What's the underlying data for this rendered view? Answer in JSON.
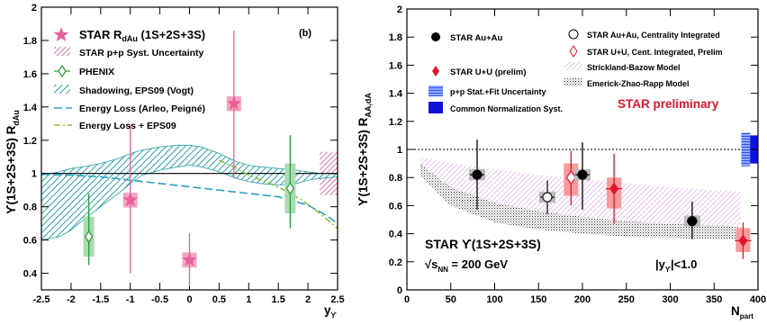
{
  "chart_data": [
    {
      "type": "scatter",
      "panel_label": "(b)",
      "ylabel": "ϒ(1S+2S+3S) R",
      "ylabel_sub": "dAu",
      "xlabel": "y",
      "xlabel_sub": "ϒ",
      "xlim": [
        -2.5,
        2.5
      ],
      "ylim": [
        0.3,
        2.0
      ],
      "x_ticks": [
        "-2.5",
        "-2",
        "-1.5",
        "-1",
        "-0.5",
        "0",
        "0.5",
        "1",
        "1.5",
        "2",
        "2.5"
      ],
      "y_ticks": [
        "0.4",
        "0.6",
        "0.8",
        "1",
        "1.2",
        "1.4",
        "1.6",
        "1.8",
        "2"
      ],
      "y_tick_values": [
        0.4,
        0.6,
        0.8,
        1.0,
        1.2,
        1.4,
        1.6,
        1.8,
        2.0
      ],
      "x_tick_values": [
        -2.5,
        -2,
        -1.5,
        -1,
        -0.5,
        0,
        0.5,
        1,
        1.5,
        2,
        2.5
      ],
      "legend": {
        "star": "STAR R",
        "star_sub": "dAu",
        "star_suffix": " (1S+2S+3S)",
        "star_syst": "STAR p+p Syst. Uncertainty",
        "phenix": "PHENIX",
        "shadowing": "Shadowing, EPS09 (Vogt)",
        "eloss": "Energy Loss (Arleo, Peigné)",
        "eloss_eps": "Energy Loss + EPS09"
      },
      "series": [
        {
          "name": "STAR",
          "color": "#e8609a",
          "points": [
            {
              "x": -1.0,
              "y": 0.84,
              "ylo": 0.4,
              "yhi": 1.29,
              "syst": 0.03
            },
            {
              "x": 0.0,
              "y": 0.48,
              "ylo": 0.32,
              "yhi": 0.64,
              "syst": 0.02
            },
            {
              "x": 0.75,
              "y": 1.42,
              "ylo": 0.97,
              "yhi": 1.86,
              "syst": 0.05
            }
          ]
        },
        {
          "name": "PHENIX",
          "color": "#2a9a3a",
          "points": [
            {
              "x": -1.7,
              "y": 0.62,
              "ylo": 0.45,
              "yhi": 0.88,
              "syst": 0.12
            },
            {
              "x": 1.7,
              "y": 0.91,
              "ylo": 0.67,
              "yhi": 1.23,
              "syst": 0.15
            }
          ]
        }
      ],
      "pp_syst": {
        "x_from": 2.2,
        "x_to": 2.5,
        "y_lo": 0.87,
        "y_hi": 1.13
      },
      "shadowing_band": {
        "x": [
          -2.5,
          -2.2,
          -2.0,
          -1.8,
          -1.5,
          -1.2,
          -1.0,
          -0.8,
          -0.5,
          -0.2,
          0,
          0.2,
          0.5,
          0.8,
          1.0,
          1.2,
          1.5,
          1.8,
          2.0,
          2.2,
          2.5
        ],
        "upper": [
          0.99,
          1.01,
          1.03,
          1.04,
          1.06,
          1.09,
          1.12,
          1.14,
          1.16,
          1.17,
          1.17,
          1.16,
          1.12,
          1.07,
          1.05,
          1.04,
          1.03,
          1.02,
          1.01,
          1.0,
          1.0
        ],
        "lower": [
          0.6,
          0.62,
          0.66,
          0.72,
          0.8,
          0.88,
          0.94,
          0.99,
          1.02,
          1.04,
          1.05,
          1.04,
          1.01,
          0.97,
          0.95,
          0.94,
          0.93,
          0.94,
          0.96,
          0.97,
          0.98
        ]
      },
      "eloss_curve": {
        "x": [
          -2.5,
          -2.0,
          -1.5,
          -1.0,
          -0.5,
          0,
          0.5,
          1.0,
          1.5,
          2.0,
          2.3,
          2.5
        ],
        "y": [
          0.995,
          0.99,
          0.98,
          0.96,
          0.94,
          0.92,
          0.9,
          0.88,
          0.86,
          0.81,
          0.75,
          0.7
        ]
      },
      "eloss_eps_curve": {
        "x": [
          0.5,
          0.8,
          1.0,
          1.3,
          1.6,
          1.9,
          2.2,
          2.5
        ],
        "y": [
          1.08,
          1.03,
          0.99,
          0.95,
          0.9,
          0.84,
          0.76,
          0.67
        ]
      }
    },
    {
      "type": "scatter",
      "ylabel": "ϒ(1S+2S+3S) R",
      "ylabel_sub": "AA,dA",
      "xlabel": "N",
      "xlabel_sub": "part",
      "xlim": [
        0,
        400
      ],
      "ylim": [
        0,
        2.0
      ],
      "x_ticks": [
        "0",
        "50",
        "100",
        "150",
        "200",
        "250",
        "300",
        "350",
        "400"
      ],
      "x_tick_values": [
        0,
        50,
        100,
        150,
        200,
        250,
        300,
        350,
        400
      ],
      "y_ticks": [
        "0",
        "0.2",
        "0.4",
        "0.6",
        "0.8",
        "1",
        "1.2",
        "1.4",
        "1.6",
        "1.8",
        "2"
      ],
      "y_tick_values": [
        0,
        0.2,
        0.4,
        0.6,
        0.8,
        1.0,
        1.2,
        1.4,
        1.6,
        1.8,
        2.0
      ],
      "legend": {
        "auau": "STAR Au+Au",
        "auau_int": "STAR Au+Au, Centrality Integrated",
        "uu": "STAR U+U (prelim)",
        "uu_int": "STAR U+U, Cent. Integrated, Prelim",
        "strickland": "Strickland-Bazow Model",
        "ezr": "Emerick-Zhao-Rapp Model",
        "pp_syst": "p+p Stat.+Fit Uncertainty",
        "norm_syst": "Common Normalization Syst."
      },
      "preliminary": "STAR preliminary",
      "label1": "STAR  ϒ(1S+2S+3S)",
      "label2_pre": "√s",
      "label2_sub": "NN",
      "label2_post": " = 200 GeV",
      "rapidity": "|y",
      "rapidity_sub": "ϒ",
      "rapidity_post": "|<1.0",
      "auau": [
        {
          "x": 80,
          "y": 0.82,
          "ylo": 0.57,
          "yhi": 1.07,
          "xerr": 8
        },
        {
          "x": 200,
          "y": 0.82,
          "ylo": 0.57,
          "yhi": 1.05,
          "xerr": 8
        },
        {
          "x": 325,
          "y": 0.49,
          "ylo": 0.36,
          "yhi": 0.63,
          "xerr": 6
        }
      ],
      "auau_int": {
        "x": 160,
        "y": 0.66,
        "ylo": 0.54,
        "yhi": 0.78,
        "xerr": 8
      },
      "uu": [
        {
          "x": 236,
          "y": 0.72,
          "ylo": 0.47,
          "yhi": 0.97,
          "syst_lo": 0.58,
          "syst_hi": 0.8
        },
        {
          "x": 383,
          "y": 0.35,
          "ylo": 0.22,
          "yhi": 0.48,
          "syst_lo": 0.27,
          "syst_hi": 0.44
        }
      ],
      "uu_int": {
        "x": 187,
        "y": 0.8,
        "ylo": 0.6,
        "yhi": 0.99,
        "syst_lo": 0.67,
        "syst_hi": 0.9
      },
      "strickland": {
        "x": [
          15,
          50,
          100,
          150,
          200,
          250,
          300,
          350,
          380
        ],
        "upper": [
          0.95,
          0.9,
          0.86,
          0.82,
          0.79,
          0.76,
          0.73,
          0.71,
          0.7
        ],
        "lower": [
          0.82,
          0.68,
          0.57,
          0.5,
          0.46,
          0.43,
          0.41,
          0.4,
          0.4
        ]
      },
      "ezr": {
        "x": [
          15,
          50,
          100,
          150,
          200,
          250,
          300,
          350,
          380
        ],
        "upper": [
          0.9,
          0.73,
          0.62,
          0.56,
          0.52,
          0.49,
          0.47,
          0.46,
          0.45
        ],
        "lower": [
          0.82,
          0.6,
          0.48,
          0.43,
          0.4,
          0.38,
          0.37,
          0.36,
          0.36
        ]
      },
      "pp_syst_box": {
        "x_from": 381,
        "x_to": 391,
        "y_lo": 0.88,
        "y_hi": 1.12
      },
      "norm_box": {
        "x_from": 391,
        "x_to": 400,
        "y_lo": 0.9,
        "y_hi": 1.1
      }
    }
  ]
}
